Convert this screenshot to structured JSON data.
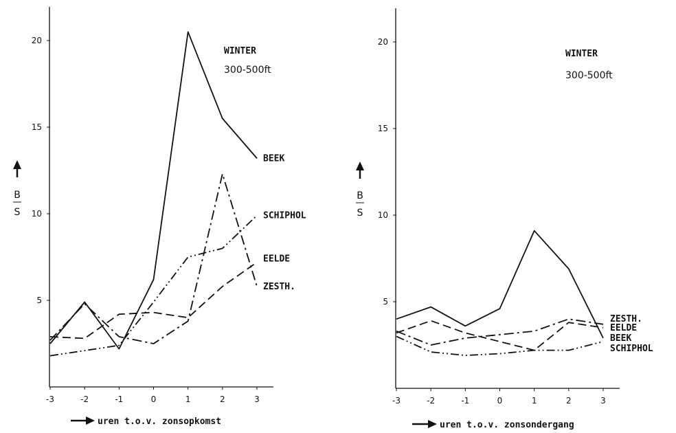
{
  "chart_data": [
    {
      "type": "line",
      "title": "WINTER",
      "subtitle": "300-500ft",
      "ylabel": "B/S",
      "xlabel": "uren t.o.v. zonsopkomst",
      "x": [
        -3,
        -2,
        -1,
        0,
        1,
        2,
        3
      ],
      "xlim": [
        -3,
        3.8
      ],
      "ylim": [
        0,
        22
      ],
      "y_ticks": [
        5,
        10,
        15,
        20
      ],
      "series": [
        {
          "name": "BEEK",
          "style": "solid",
          "values": [
            2.5,
            4.9,
            2.2,
            6.2,
            20.5,
            15.5,
            13.2
          ]
        },
        {
          "name": "SCHIPHOL",
          "style": "dash-dot-dot",
          "values": [
            1.8,
            2.1,
            2.4,
            4.9,
            7.5,
            8.0,
            9.9
          ]
        },
        {
          "name": "EELDE",
          "style": "dashed",
          "values": [
            2.9,
            2.8,
            4.2,
            4.3,
            4.0,
            5.8,
            7.2
          ]
        },
        {
          "name": "ZESTH.",
          "style": "dash-dot",
          "values": [
            2.7,
            4.8,
            2.9,
            2.5,
            3.8,
            12.3,
            5.8
          ]
        }
      ],
      "label_positions": [
        {
          "series": "BEEK",
          "y": 13.2
        },
        {
          "series": "SCHIPHOL",
          "y": 9.9
        },
        {
          "series": "EELDE",
          "y": 7.4
        },
        {
          "series": "ZESTH.",
          "y": 5.8
        }
      ]
    },
    {
      "type": "line",
      "title": "WINTER",
      "subtitle": "300-500ft",
      "ylabel": "B/S",
      "xlabel": "uren t.o.v. zonsondergang",
      "x": [
        -3,
        -2,
        -1,
        0,
        1,
        2,
        3
      ],
      "xlim": [
        -3,
        3.8
      ],
      "ylim": [
        0,
        22
      ],
      "y_ticks": [
        5,
        10,
        15,
        20
      ],
      "series": [
        {
          "name": "BEEK",
          "style": "solid",
          "values": [
            4.0,
            4.7,
            3.6,
            4.6,
            9.1,
            6.9,
            2.9
          ]
        },
        {
          "name": "SCHIPHOL",
          "style": "dash-dot-dot",
          "values": [
            3.0,
            2.1,
            1.9,
            2.0,
            2.2,
            2.2,
            2.7
          ]
        },
        {
          "name": "EELDE",
          "style": "dashed",
          "values": [
            3.2,
            3.9,
            3.2,
            2.7,
            2.2,
            3.8,
            3.5
          ]
        },
        {
          "name": "ZESTH.",
          "style": "dash-dot",
          "values": [
            3.3,
            2.5,
            2.9,
            3.1,
            3.3,
            4.0,
            3.7
          ]
        }
      ],
      "label_positions": [
        {
          "series": "ZESTH.",
          "y": 4.0
        },
        {
          "series": "EELDE",
          "y": 3.5
        },
        {
          "series": "BEEK",
          "y": 2.9
        },
        {
          "series": "SCHIPHOL",
          "y": 2.3
        }
      ]
    }
  ],
  "y_axis_fraction_num": "B",
  "y_axis_fraction_den": "S"
}
